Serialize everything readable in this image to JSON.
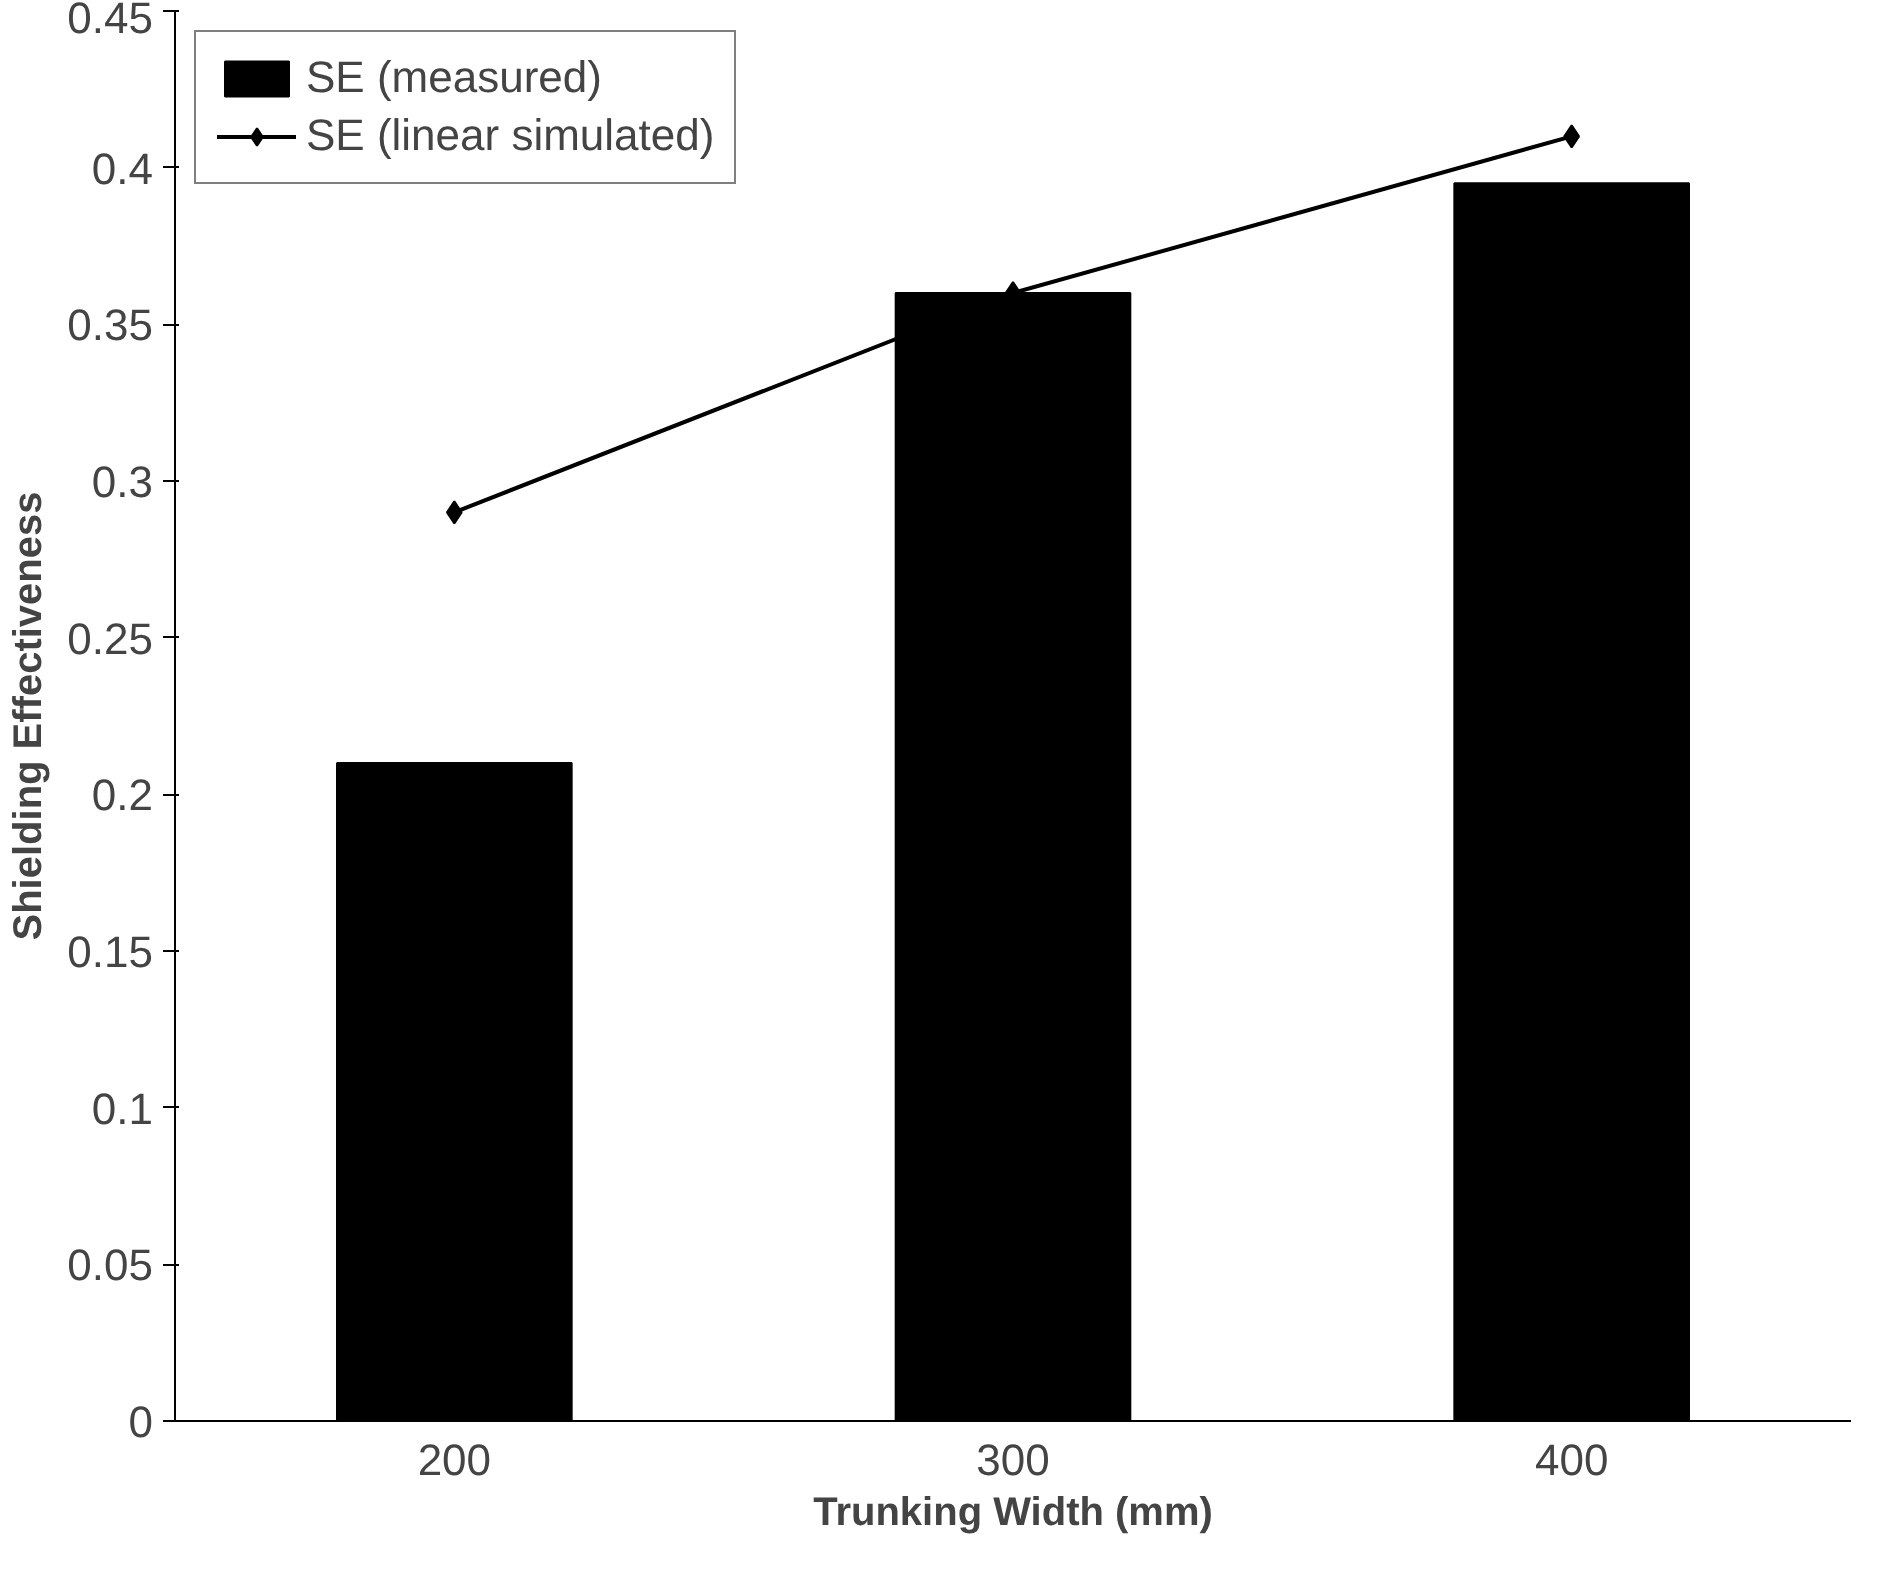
{
  "chart_data": {
    "type": "bar",
    "xlabel": "Trunking Width (mm)",
    "ylabel": "Shielding Effectiveness",
    "categories": [
      "200",
      "300",
      "400"
    ],
    "series": [
      {
        "name": "SE (measured)",
        "color": "#000000",
        "values": [
          0.21,
          0.36,
          0.395
        ]
      },
      {
        "name": "SE (linear simulated)",
        "type": "line",
        "color": "#000000",
        "marker": "diamond",
        "values": [
          0.29,
          0.36,
          0.41
        ]
      }
    ],
    "ylim": [
      0,
      0.45
    ],
    "yticks": [
      0,
      0.05,
      0.1,
      0.15,
      0.2,
      0.25,
      0.3,
      0.35,
      0.4,
      0.45
    ],
    "grid": false,
    "legend": "top left"
  }
}
